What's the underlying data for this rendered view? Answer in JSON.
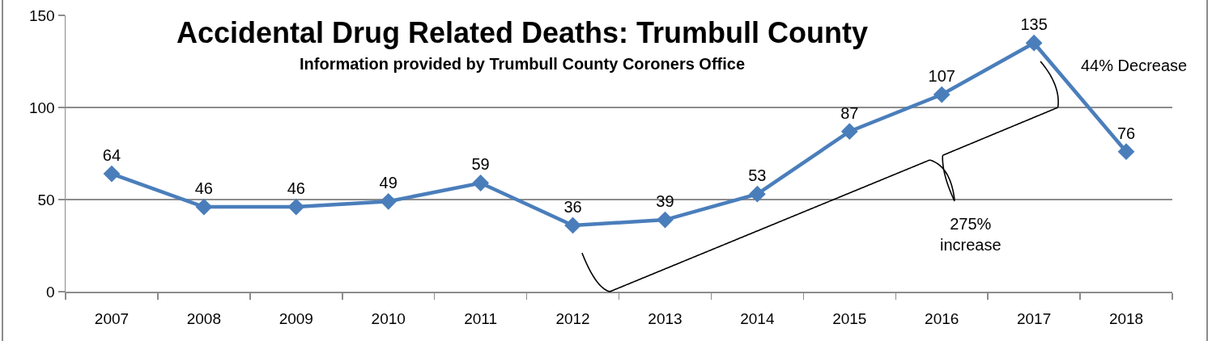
{
  "chart_data": {
    "type": "line",
    "title": "Accidental Drug Related Deaths: Trumbull County",
    "subtitle": "Information provided by Trumbull County Coroners Office",
    "categories": [
      "2007",
      "2008",
      "2009",
      "2010",
      "2011",
      "2012",
      "2013",
      "2014",
      "2015",
      "2016",
      "2017",
      "2018"
    ],
    "series": [
      {
        "color": "#4a7ebb",
        "values": [
          64,
          46,
          46,
          49,
          59,
          36,
          39,
          53,
          87,
          107,
          135,
          76
        ]
      }
    ],
    "ylim": [
      0,
      150
    ],
    "yticks": [
      0,
      50,
      100,
      150
    ],
    "grid": "y",
    "marker": "diamond",
    "line_style": "solid",
    "data_labels": true,
    "annotations": [
      "44% Decrease",
      "275%\nincrease"
    ]
  }
}
